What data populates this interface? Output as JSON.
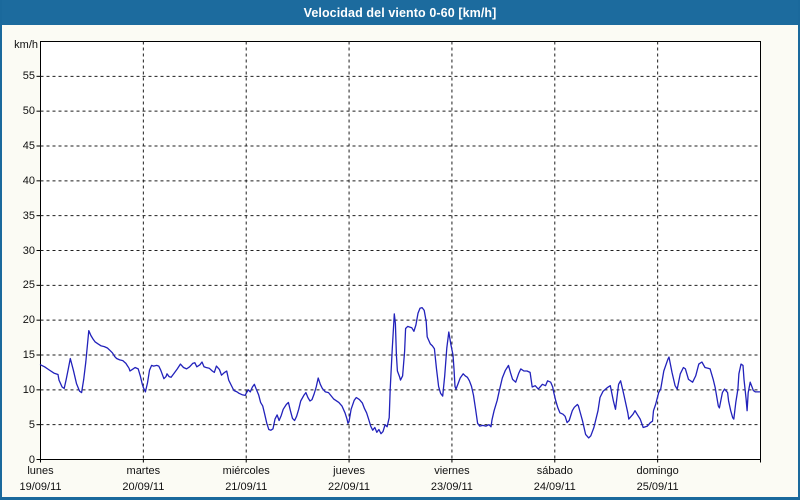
{
  "window": {
    "title": "Velocidad del viento 0-60 [km/h]"
  },
  "colors": {
    "titlebar_bg": "#1c6b9e",
    "page_bg": "#fbfbf4",
    "page_border": "#1a699c",
    "plot_bg": "#ffffff",
    "grid": "#1f1f1f",
    "axis": "#000000",
    "line": "#2222bb"
  },
  "chart_data": {
    "type": "line",
    "title": "Velocidad del viento 0-60 [km/h]",
    "y_unit_label": "km/h",
    "ylim": [
      0,
      60
    ],
    "yticks": [
      0,
      5,
      10,
      15,
      20,
      25,
      30,
      35,
      40,
      45,
      50,
      55
    ],
    "grid": "dashed",
    "legend_position": "none",
    "xlim_days": [
      0,
      7
    ],
    "x_days": [
      {
        "name": "lunes",
        "date": "19/09/11"
      },
      {
        "name": "martes",
        "date": "20/09/11"
      },
      {
        "name": "miércoles",
        "date": "21/09/11"
      },
      {
        "name": "jueves",
        "date": "22/09/11"
      },
      {
        "name": "viernes",
        "date": "23/09/11"
      },
      {
        "name": "sábado",
        "date": "24/09/11"
      },
      {
        "name": "domingo",
        "date": "25/09/11"
      }
    ],
    "series": [
      {
        "name": "Velocidad del viento [km/h]",
        "color": "#2222bb",
        "points": [
          [
            0,
            13.6
          ],
          [
            0.04,
            13.3
          ],
          [
            0.08,
            12.9
          ],
          [
            0.13,
            12.4
          ],
          [
            0.17,
            12.2
          ],
          [
            0.18,
            11.4
          ],
          [
            0.21,
            10.4
          ],
          [
            0.23,
            10.2
          ],
          [
            0.25,
            11.5
          ],
          [
            0.27,
            13
          ],
          [
            0.29,
            14.5
          ],
          [
            0.32,
            12.8
          ],
          [
            0.35,
            10.9
          ],
          [
            0.38,
            9.8
          ],
          [
            0.4,
            9.6
          ],
          [
            0.42,
            11.5
          ],
          [
            0.44,
            14
          ],
          [
            0.46,
            17
          ],
          [
            0.47,
            18.5
          ],
          [
            0.49,
            17.8
          ],
          [
            0.51,
            17.3
          ],
          [
            0.53,
            16.9
          ],
          [
            0.56,
            16.6
          ],
          [
            0.59,
            16.3
          ],
          [
            0.62,
            16.2
          ],
          [
            0.65,
            16
          ],
          [
            0.68,
            15.6
          ],
          [
            0.7,
            15.3
          ],
          [
            0.72,
            14.8
          ],
          [
            0.74,
            14.5
          ],
          [
            0.77,
            14.3
          ],
          [
            0.8,
            14.2
          ],
          [
            0.83,
            13.8
          ],
          [
            0.86,
            13.1
          ],
          [
            0.87,
            12.7
          ],
          [
            0.9,
            13
          ],
          [
            0.92,
            13.2
          ],
          [
            0.95,
            13
          ],
          [
            0.97,
            12
          ],
          [
            0.99,
            10.8
          ],
          [
            1,
            10.3
          ],
          [
            1.02,
            9.7
          ],
          [
            1.04,
            11
          ],
          [
            1.06,
            12.8
          ],
          [
            1.08,
            13.5
          ],
          [
            1.1,
            13.4
          ],
          [
            1.13,
            13.5
          ],
          [
            1.15,
            13.4
          ],
          [
            1.17,
            12.8
          ],
          [
            1.2,
            11.6
          ],
          [
            1.22,
            11.9
          ],
          [
            1.23,
            12.3
          ],
          [
            1.25,
            11.9
          ],
          [
            1.27,
            11.8
          ],
          [
            1.3,
            12.4
          ],
          [
            1.33,
            13
          ],
          [
            1.36,
            13.7
          ],
          [
            1.39,
            13.2
          ],
          [
            1.42,
            13
          ],
          [
            1.45,
            13.3
          ],
          [
            1.48,
            13.8
          ],
          [
            1.5,
            13.9
          ],
          [
            1.52,
            13.3
          ],
          [
            1.55,
            13.6
          ],
          [
            1.57,
            14
          ],
          [
            1.59,
            13.3
          ],
          [
            1.61,
            13.2
          ],
          [
            1.64,
            13.1
          ],
          [
            1.67,
            12.7
          ],
          [
            1.69,
            12.5
          ],
          [
            1.71,
            13.4
          ],
          [
            1.74,
            12.9
          ],
          [
            1.76,
            12.1
          ],
          [
            1.79,
            12.5
          ],
          [
            1.81,
            12.7
          ],
          [
            1.83,
            11.4
          ],
          [
            1.86,
            10.5
          ],
          [
            1.88,
            9.9
          ],
          [
            1.91,
            9.7
          ],
          [
            1.93,
            9.5
          ],
          [
            1.96,
            9.3
          ],
          [
            1.99,
            9.2
          ],
          [
            2,
            9.5
          ],
          [
            2.02,
            10
          ],
          [
            2.04,
            9.7
          ],
          [
            2.06,
            10.4
          ],
          [
            2.08,
            10.8
          ],
          [
            2.1,
            10
          ],
          [
            2.12,
            9.3
          ],
          [
            2.14,
            8.2
          ],
          [
            2.16,
            7.7
          ],
          [
            2.18,
            6.5
          ],
          [
            2.2,
            5.2
          ],
          [
            2.22,
            4.3
          ],
          [
            2.24,
            4.2
          ],
          [
            2.26,
            4.4
          ],
          [
            2.28,
            5.8
          ],
          [
            2.3,
            6.4
          ],
          [
            2.32,
            5.6
          ],
          [
            2.34,
            6.3
          ],
          [
            2.36,
            7.2
          ],
          [
            2.39,
            7.9
          ],
          [
            2.41,
            8.2
          ],
          [
            2.43,
            7
          ],
          [
            2.45,
            5.9
          ],
          [
            2.47,
            5.6
          ],
          [
            2.49,
            6.2
          ],
          [
            2.51,
            7.2
          ],
          [
            2.53,
            8.4
          ],
          [
            2.56,
            9.2
          ],
          [
            2.58,
            9.6
          ],
          [
            2.6,
            8.9
          ],
          [
            2.62,
            8.4
          ],
          [
            2.64,
            8.6
          ],
          [
            2.66,
            9.4
          ],
          [
            2.68,
            10.4
          ],
          [
            2.7,
            11.7
          ],
          [
            2.72,
            10.8
          ],
          [
            2.74,
            10.2
          ],
          [
            2.77,
            9.7
          ],
          [
            2.8,
            9.6
          ],
          [
            2.85,
            8.7
          ],
          [
            2.9,
            8.2
          ],
          [
            2.93,
            7.7
          ],
          [
            2.96,
            6.7
          ],
          [
            2.98,
            5.8
          ],
          [
            2.99,
            5.2
          ],
          [
            3,
            5.5
          ],
          [
            3.02,
            7.2
          ],
          [
            3.05,
            8.5
          ],
          [
            3.07,
            8.9
          ],
          [
            3.1,
            8.6
          ],
          [
            3.13,
            8.1
          ],
          [
            3.15,
            7.3
          ],
          [
            3.17,
            6.7
          ],
          [
            3.19,
            5.8
          ],
          [
            3.21,
            4.8
          ],
          [
            3.23,
            4.2
          ],
          [
            3.25,
            4.6
          ],
          [
            3.27,
            3.9
          ],
          [
            3.29,
            4.3
          ],
          [
            3.31,
            3.7
          ],
          [
            3.33,
            4
          ],
          [
            3.35,
            5
          ],
          [
            3.37,
            4.7
          ],
          [
            3.39,
            6
          ],
          [
            3.4,
            10.1
          ],
          [
            3.42,
            16
          ],
          [
            3.44,
            20.9
          ],
          [
            3.45,
            19.5
          ],
          [
            3.46,
            15
          ],
          [
            3.47,
            12.7
          ],
          [
            3.49,
            11.9
          ],
          [
            3.5,
            11.4
          ],
          [
            3.52,
            12
          ],
          [
            3.54,
            15.5
          ],
          [
            3.55,
            18.8
          ],
          [
            3.57,
            19.1
          ],
          [
            3.59,
            19
          ],
          [
            3.61,
            18.9
          ],
          [
            3.63,
            18.4
          ],
          [
            3.65,
            19.3
          ],
          [
            3.67,
            21
          ],
          [
            3.69,
            21.7
          ],
          [
            3.71,
            21.8
          ],
          [
            3.73,
            21.4
          ],
          [
            3.75,
            19.8
          ],
          [
            3.76,
            17.6
          ],
          [
            3.79,
            16.6
          ],
          [
            3.81,
            16.3
          ],
          [
            3.83,
            15.9
          ],
          [
            3.85,
            13
          ],
          [
            3.87,
            10.5
          ],
          [
            3.89,
            9.5
          ],
          [
            3.91,
            9.1
          ],
          [
            3.93,
            12
          ],
          [
            3.95,
            16
          ],
          [
            3.97,
            18.3
          ],
          [
            3.99,
            16.5
          ],
          [
            4.01,
            15
          ],
          [
            4.02,
            13
          ],
          [
            4.03,
            10.5
          ],
          [
            4.04,
            10.1
          ],
          [
            4.06,
            10.9
          ],
          [
            4.08,
            11.7
          ],
          [
            4.11,
            12.3
          ],
          [
            4.13,
            12
          ],
          [
            4.15,
            11.8
          ],
          [
            4.17,
            11.3
          ],
          [
            4.19,
            10.5
          ],
          [
            4.21,
            9.2
          ],
          [
            4.23,
            7.2
          ],
          [
            4.25,
            5.2
          ],
          [
            4.27,
            4.8
          ],
          [
            4.3,
            4.9
          ],
          [
            4.33,
            4.8
          ],
          [
            4.36,
            5
          ],
          [
            4.38,
            4.7
          ],
          [
            4.39,
            5.7
          ],
          [
            4.41,
            7
          ],
          [
            4.44,
            8.5
          ],
          [
            4.46,
            9.8
          ],
          [
            4.49,
            11.7
          ],
          [
            4.52,
            12.8
          ],
          [
            4.55,
            13.5
          ],
          [
            4.57,
            12.4
          ],
          [
            4.59,
            11.5
          ],
          [
            4.62,
            11.1
          ],
          [
            4.65,
            12.4
          ],
          [
            4.67,
            13
          ],
          [
            4.7,
            12.7
          ],
          [
            4.73,
            12.7
          ],
          [
            4.76,
            12.5
          ],
          [
            4.78,
            10.4
          ],
          [
            4.81,
            10.6
          ],
          [
            4.84,
            10.1
          ],
          [
            4.88,
            10.8
          ],
          [
            4.91,
            10.6
          ],
          [
            4.93,
            11.3
          ],
          [
            4.96,
            11.1
          ],
          [
            4.98,
            10.4
          ],
          [
            4.99,
            9.6
          ],
          [
            5.01,
            8.4
          ],
          [
            5.03,
            7.4
          ],
          [
            5.05,
            6.7
          ],
          [
            5.08,
            6.5
          ],
          [
            5.1,
            6.2
          ],
          [
            5.12,
            5.3
          ],
          [
            5.14,
            5.6
          ],
          [
            5.17,
            7
          ],
          [
            5.19,
            7.5
          ],
          [
            5.22,
            7.9
          ],
          [
            5.23,
            7.7
          ],
          [
            5.25,
            6.6
          ],
          [
            5.27,
            5.5
          ],
          [
            5.3,
            3.6
          ],
          [
            5.33,
            3.1
          ],
          [
            5.35,
            3.4
          ],
          [
            5.38,
            4.6
          ],
          [
            5.42,
            7
          ],
          [
            5.44,
            8.9
          ],
          [
            5.47,
            9.8
          ],
          [
            5.51,
            10.3
          ],
          [
            5.54,
            10.6
          ],
          [
            5.57,
            8.4
          ],
          [
            5.59,
            7.2
          ],
          [
            5.62,
            10.8
          ],
          [
            5.64,
            11.3
          ],
          [
            5.67,
            9.4
          ],
          [
            5.71,
            6.7
          ],
          [
            5.72,
            5.8
          ],
          [
            5.76,
            6.5
          ],
          [
            5.78,
            7
          ],
          [
            5.8,
            6.5
          ],
          [
            5.83,
            5.8
          ],
          [
            5.86,
            4.6
          ],
          [
            5.9,
            4.8
          ],
          [
            5.93,
            5.3
          ],
          [
            5.95,
            5.5
          ],
          [
            5.96,
            7
          ],
          [
            5.98,
            7.9
          ],
          [
            6.01,
            9.6
          ],
          [
            6.03,
            10.1
          ],
          [
            6.06,
            12.7
          ],
          [
            6.1,
            14.4
          ],
          [
            6.11,
            14.7
          ],
          [
            6.14,
            12.5
          ],
          [
            6.17,
            10.6
          ],
          [
            6.19,
            10.1
          ],
          [
            6.22,
            12.3
          ],
          [
            6.25,
            13.2
          ],
          [
            6.27,
            13
          ],
          [
            6.3,
            11.5
          ],
          [
            6.34,
            11.1
          ],
          [
            6.37,
            12
          ],
          [
            6.4,
            13.7
          ],
          [
            6.43,
            14
          ],
          [
            6.46,
            13.2
          ],
          [
            6.49,
            13.1
          ],
          [
            6.51,
            13
          ],
          [
            6.54,
            11.5
          ],
          [
            6.56,
            10.3
          ],
          [
            6.59,
            7.7
          ],
          [
            6.6,
            7.4
          ],
          [
            6.63,
            9.6
          ],
          [
            6.65,
            10.1
          ],
          [
            6.68,
            9.6
          ],
          [
            6.69,
            8.4
          ],
          [
            6.71,
            7
          ],
          [
            6.73,
            6
          ],
          [
            6.74,
            5.8
          ],
          [
            6.76,
            8.2
          ],
          [
            6.78,
            10.1
          ],
          [
            6.79,
            12.3
          ],
          [
            6.81,
            13.7
          ],
          [
            6.83,
            13.5
          ],
          [
            6.84,
            11.5
          ],
          [
            6.86,
            8.7
          ],
          [
            6.87,
            7
          ],
          [
            6.88,
            9.6
          ],
          [
            6.9,
            11.1
          ],
          [
            6.92,
            10.3
          ],
          [
            6.93,
            9.9
          ],
          [
            6.95,
            9.7
          ],
          [
            6.98,
            9.7
          ],
          [
            6.99,
            9.7
          ]
        ]
      }
    ]
  }
}
